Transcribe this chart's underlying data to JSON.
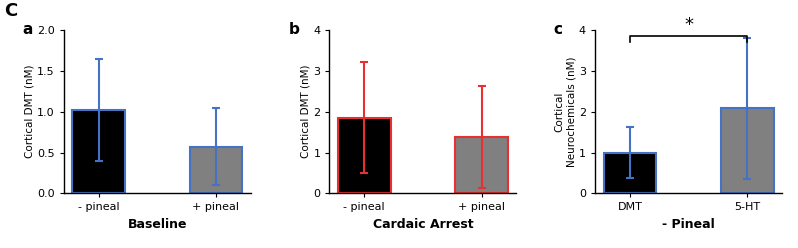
{
  "panel_a": {
    "label": "a",
    "categories": [
      "- pineal",
      "+ pineal"
    ],
    "values": [
      1.02,
      0.57
    ],
    "errors": [
      0.62,
      0.47
    ],
    "bar_colors": [
      "black",
      "#808080"
    ],
    "bar_edge_color": "#4472C4",
    "ylabel": "Cortical DMT (nM)",
    "xlabel": "Baseline",
    "ylim": [
      0,
      2.0
    ],
    "yticks": [
      0.0,
      0.5,
      1.0,
      1.5,
      2.0
    ]
  },
  "panel_b": {
    "label": "b",
    "categories": [
      "- pineal",
      "+ pineal"
    ],
    "values": [
      1.85,
      1.38
    ],
    "errors": [
      1.35,
      1.25
    ],
    "bar_colors": [
      "black",
      "#808080"
    ],
    "bar_edge_color": "#e83030",
    "ylabel": "Cortical DMT (nM)",
    "xlabel": "Cardaic Arrest",
    "ylim": [
      0,
      4.0
    ],
    "yticks": [
      0.0,
      1.0,
      2.0,
      3.0,
      4.0
    ]
  },
  "panel_c": {
    "label": "c",
    "categories": [
      "DMT",
      "5-HT"
    ],
    "values": [
      1.0,
      2.08
    ],
    "errors": [
      0.62,
      1.72
    ],
    "bar_colors": [
      "black",
      "#808080"
    ],
    "bar_edge_color": "#4472C4",
    "ylabel": "Cortical\nNeurochemicals (nM)",
    "xlabel": "- Pineal",
    "ylim": [
      0,
      4.0
    ],
    "yticks": [
      0.0,
      1.0,
      2.0,
      3.0,
      4.0
    ],
    "sig_label": "*"
  },
  "figure_label": "C",
  "background_color": "#ffffff",
  "bar_width": 0.45,
  "error_capsize": 3
}
